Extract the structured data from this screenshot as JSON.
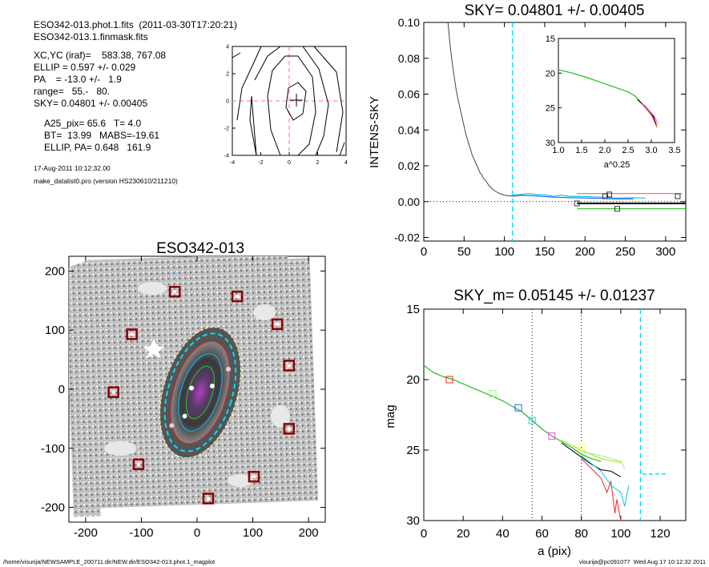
{
  "header": {
    "line1": "ESO342-013.phot.1.fits  (2011-03-30T17:20:21)",
    "line2": "ESO342-013.1.finmask.fits",
    "params": [
      "XC,YC (iraf)=    583.38, 767.08",
      "ELLIP = 0.597 +/- 0.029",
      "PA    = -13.0 +/-   1.9",
      "range=   55.-   80.",
      "SKY= 0.04801 +/- 0.00405"
    ],
    "derived": [
      "A25_pix= 65.6   T= 4.0",
      "BT=  13.99   MABS=-19.61",
      "ELLIP, PA= 0.648   161.9"
    ],
    "date": "17-Aug-2011 10:12:32.00",
    "program": "make_datalist0.pro (version HS230610/211210)"
  },
  "footer": {
    "path": "/home/visurija/NEWSAMPLE_200711.dir/NEW.dir/ESO342-013.phot.1_magplot",
    "user": "visurija@pc091077  Wed Aug 17 10:12:32 2011"
  },
  "colors": {
    "axis": "#000000",
    "cyan_dash": "#00e0ff",
    "marker": "#8b0000",
    "galaxy_bg": "#9a9a9a"
  },
  "chart_data": [
    {
      "id": "contour",
      "type": "contour",
      "title": "",
      "xlim": [
        -4,
        4
      ],
      "ylim": [
        -4,
        4
      ],
      "xticks": [
        "-4",
        "-2",
        "0",
        "2",
        "4"
      ],
      "yticks": [
        "-4",
        "-2",
        "0",
        "2",
        "4"
      ],
      "center": [
        0.4,
        0.1
      ]
    },
    {
      "id": "sky",
      "type": "line",
      "title": "SKY= 0.04801 +/- 0.00405",
      "xlabel": "",
      "ylabel": "INTENS-SKY",
      "xlim": [
        0,
        325
      ],
      "ylim": [
        -0.022,
        0.1
      ],
      "xticks": [
        0,
        50,
        100,
        150,
        200,
        250,
        300
      ],
      "yticks": [
        -0.02,
        0.0,
        0.02,
        0.04,
        0.06,
        0.08,
        0.1
      ],
      "ytick_labels": [
        "-0.02",
        "0.00",
        "0.02",
        "0.04",
        "0.06",
        "0.08",
        "0.10"
      ],
      "vline_cyan": 110,
      "profile": [
        [
          30,
          0.1
        ],
        [
          32,
          0.09
        ],
        [
          34,
          0.082
        ],
        [
          36,
          0.075
        ],
        [
          38,
          0.069
        ],
        [
          40,
          0.063
        ],
        [
          42,
          0.058
        ],
        [
          44,
          0.054
        ],
        [
          46,
          0.05
        ],
        [
          48,
          0.046
        ],
        [
          50,
          0.042
        ],
        [
          52,
          0.038
        ],
        [
          54,
          0.035
        ],
        [
          56,
          0.032
        ],
        [
          58,
          0.029
        ],
        [
          60,
          0.026
        ],
        [
          62,
          0.024
        ],
        [
          64,
          0.022
        ],
        [
          66,
          0.02
        ],
        [
          68,
          0.018
        ],
        [
          70,
          0.016
        ],
        [
          72,
          0.015
        ],
        [
          74,
          0.013
        ],
        [
          76,
          0.012
        ],
        [
          78,
          0.011
        ],
        [
          80,
          0.0095
        ],
        [
          82,
          0.0085
        ],
        [
          84,
          0.0075
        ],
        [
          86,
          0.0068
        ],
        [
          88,
          0.006
        ],
        [
          90,
          0.0055
        ],
        [
          92,
          0.005
        ],
        [
          94,
          0.0045
        ],
        [
          96,
          0.0042
        ],
        [
          98,
          0.0039
        ],
        [
          100,
          0.0036
        ],
        [
          105,
          0.0033
        ],
        [
          110,
          0.0031
        ]
      ],
      "series": [
        {
          "name": "",
          "color": "#00c8e6",
          "points": [
            [
              110,
              0.0035
            ],
            [
              120,
              0.004
            ],
            [
              130,
              0.0045
            ],
            [
              140,
              0.004
            ],
            [
              150,
              0.0038
            ],
            [
              160,
              0.003
            ],
            [
              170,
              0.0035
            ],
            [
              180,
              0.003
            ],
            [
              200,
              0.0028
            ],
            [
              220,
              0.0025
            ],
            [
              240,
              0.002
            ],
            [
              260,
              0.0022
            ],
            [
              275,
              0.002
            ]
          ]
        },
        {
          "name": "",
          "color": "#3060ff",
          "points": [
            [
              110,
              0.003
            ],
            [
              120,
              0.0035
            ],
            [
              140,
              0.0032
            ],
            [
              160,
              0.0025
            ],
            [
              180,
              0.0022
            ],
            [
              200,
              0.002
            ],
            [
              220,
              0.0018
            ],
            [
              240,
              0.0015
            ],
            [
              260,
              0.0015
            ]
          ]
        },
        {
          "name": "",
          "color": "#ff6060",
          "points": [
            [
              190,
              0.0045
            ],
            [
              320,
              0.0045
            ]
          ]
        },
        {
          "name": "",
          "color": "#000000",
          "points": [
            [
              190,
              -0.001
            ],
            [
              325,
              -0.001
            ]
          ]
        },
        {
          "name": "",
          "color": "#20c020",
          "points": [
            [
              190,
              -0.004
            ],
            [
              325,
              -0.004
            ]
          ]
        }
      ],
      "squares": [
        [
          190,
          -0.001
        ],
        [
          225,
          0.003
        ],
        [
          230,
          0.004
        ],
        [
          240,
          -0.004
        ],
        [
          315,
          0.003
        ]
      ],
      "inset": {
        "xlim": [
          1.0,
          3.5
        ],
        "ylim": [
          15,
          30
        ],
        "xlabel": "a^0.25",
        "xticks": [
          "1.0",
          "1.5",
          "2.0",
          "2.5",
          "3.0",
          "3.5"
        ],
        "yticks": [
          "15",
          "20",
          "25",
          "30"
        ],
        "curve": [
          [
            1.0,
            19.5
          ],
          [
            1.3,
            20.0
          ],
          [
            1.6,
            20.6
          ],
          [
            1.9,
            21.3
          ],
          [
            2.2,
            22.0
          ],
          [
            2.5,
            22.7
          ],
          [
            2.65,
            23.3
          ],
          [
            2.75,
            24.0
          ],
          [
            2.85,
            24.8
          ],
          [
            2.95,
            25.6
          ],
          [
            3.05,
            26.5
          ],
          [
            3.12,
            27.5
          ]
        ]
      }
    },
    {
      "id": "image",
      "type": "image",
      "title": "ESO342-013",
      "xlim": [
        -230,
        230
      ],
      "ylim": [
        -225,
        225
      ],
      "xticks": [
        -200,
        -100,
        0,
        100,
        200
      ],
      "yticks": [
        -200,
        -100,
        0,
        100,
        200
      ],
      "markers": [
        [
          -40,
          165
        ],
        [
          72,
          157
        ],
        [
          -117,
          93
        ],
        [
          144,
          110
        ],
        [
          165,
          40
        ],
        [
          -150,
          -5
        ],
        [
          165,
          -67
        ],
        [
          -105,
          -127
        ],
        [
          102,
          -148
        ],
        [
          20,
          -185
        ]
      ]
    },
    {
      "id": "mag",
      "type": "line",
      "title": "SKY_m=  0.05145 +/- 0.01237",
      "xlabel": "a (pix)",
      "ylabel": "mag",
      "xlim": [
        0,
        133
      ],
      "ylim": [
        15,
        30
      ],
      "xticks": [
        0,
        20,
        40,
        60,
        80,
        100,
        120
      ],
      "yticks": [
        15,
        20,
        25,
        30
      ],
      "vlines_dotted": [
        55,
        80
      ],
      "vline_cyan": 110,
      "main_curve": [
        [
          0,
          19.0
        ],
        [
          5,
          19.5
        ],
        [
          10,
          19.8
        ],
        [
          15,
          20.0
        ],
        [
          20,
          20.3
        ],
        [
          25,
          20.6
        ],
        [
          30,
          20.9
        ],
        [
          35,
          21.2
        ],
        [
          40,
          21.5
        ],
        [
          45,
          21.9
        ],
        [
          50,
          22.3
        ],
        [
          55,
          22.9
        ],
        [
          60,
          23.5
        ],
        [
          65,
          24.0
        ],
        [
          70,
          24.4
        ],
        [
          75,
          24.8
        ],
        [
          80,
          25.3
        ],
        [
          85,
          25.6
        ],
        [
          90,
          25.8
        ]
      ],
      "tails": [
        {
          "color": "#000000",
          "points": [
            [
              70,
              24.5
            ],
            [
              80,
              25.5
            ],
            [
              85,
              26.0
            ],
            [
              90,
              26.4
            ],
            [
              95,
              26.5
            ],
            [
              100,
              26.9
            ]
          ]
        },
        {
          "color": "#ff2020",
          "points": [
            [
              80,
              25.6
            ],
            [
              85,
              26.3
            ],
            [
              90,
              27.0
            ],
            [
              93,
              28.0
            ],
            [
              95,
              27.2
            ],
            [
              97,
              29.5
            ],
            [
              98,
              28.5
            ],
            [
              100,
              30
            ]
          ]
        },
        {
          "color": "#00c8e6",
          "points": [
            [
              80,
              25.4
            ],
            [
              90,
              26.5
            ],
            [
              95,
              27.5
            ],
            [
              100,
              28.0
            ],
            [
              102,
              29.0
            ],
            [
              104,
              27.5
            ]
          ]
        },
        {
          "color": "#b0e000",
          "points": [
            [
              70,
              24.3
            ],
            [
              80,
              25.0
            ],
            [
              90,
              25.6
            ],
            [
              100,
              25.9
            ]
          ]
        },
        {
          "color": "#80ff80",
          "points": [
            [
              80,
              25.1
            ],
            [
              90,
              25.4
            ],
            [
              100,
              25.8
            ],
            [
              102,
              26.3
            ]
          ]
        }
      ],
      "cyan_dash_segment": [
        [
          111,
          26.7
        ],
        [
          123,
          26.7
        ]
      ],
      "squares": [
        {
          "x": 13,
          "y": 20.0,
          "color": "#ff2020"
        },
        {
          "x": 35,
          "y": 21.0,
          "color": "#80ff80"
        },
        {
          "x": 48,
          "y": 22.0,
          "color": "#3060ff"
        },
        {
          "x": 55,
          "y": 22.9,
          "color": "#00e0ff"
        },
        {
          "x": 65,
          "y": 24.0,
          "color": "#ff40ff"
        },
        {
          "x": 80,
          "y": 24.8,
          "color": "#ffff60"
        }
      ]
    }
  ]
}
